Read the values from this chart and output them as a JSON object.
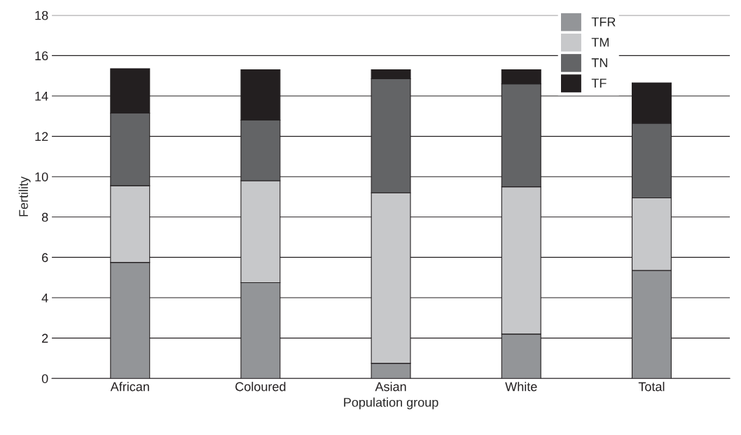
{
  "chart_data": {
    "type": "bar",
    "stacked": true,
    "xlabel": "Population group",
    "ylabel": "Fertility",
    "categories": [
      "African",
      "Coloured",
      "Asian",
      "White",
      "Total"
    ],
    "series": [
      {
        "name": "TFR",
        "color": "#939598",
        "values": [
          5.75,
          4.75,
          0.75,
          2.2,
          5.35
        ]
      },
      {
        "name": "TM",
        "color": "#c7c8ca",
        "values": [
          3.8,
          5.05,
          8.45,
          7.3,
          3.6
        ]
      },
      {
        "name": "TN",
        "color": "#636466",
        "values": [
          3.6,
          3.0,
          5.65,
          5.1,
          3.7
        ]
      },
      {
        "name": "TF",
        "color": "#231f20",
        "values": [
          2.2,
          2.5,
          0.45,
          0.7,
          2.0
        ]
      }
    ],
    "ylim": [
      0,
      18
    ],
    "yticks": [
      0,
      2,
      4,
      6,
      8,
      10,
      12,
      14,
      16,
      18
    ],
    "grid": "y",
    "legend": "top right"
  }
}
